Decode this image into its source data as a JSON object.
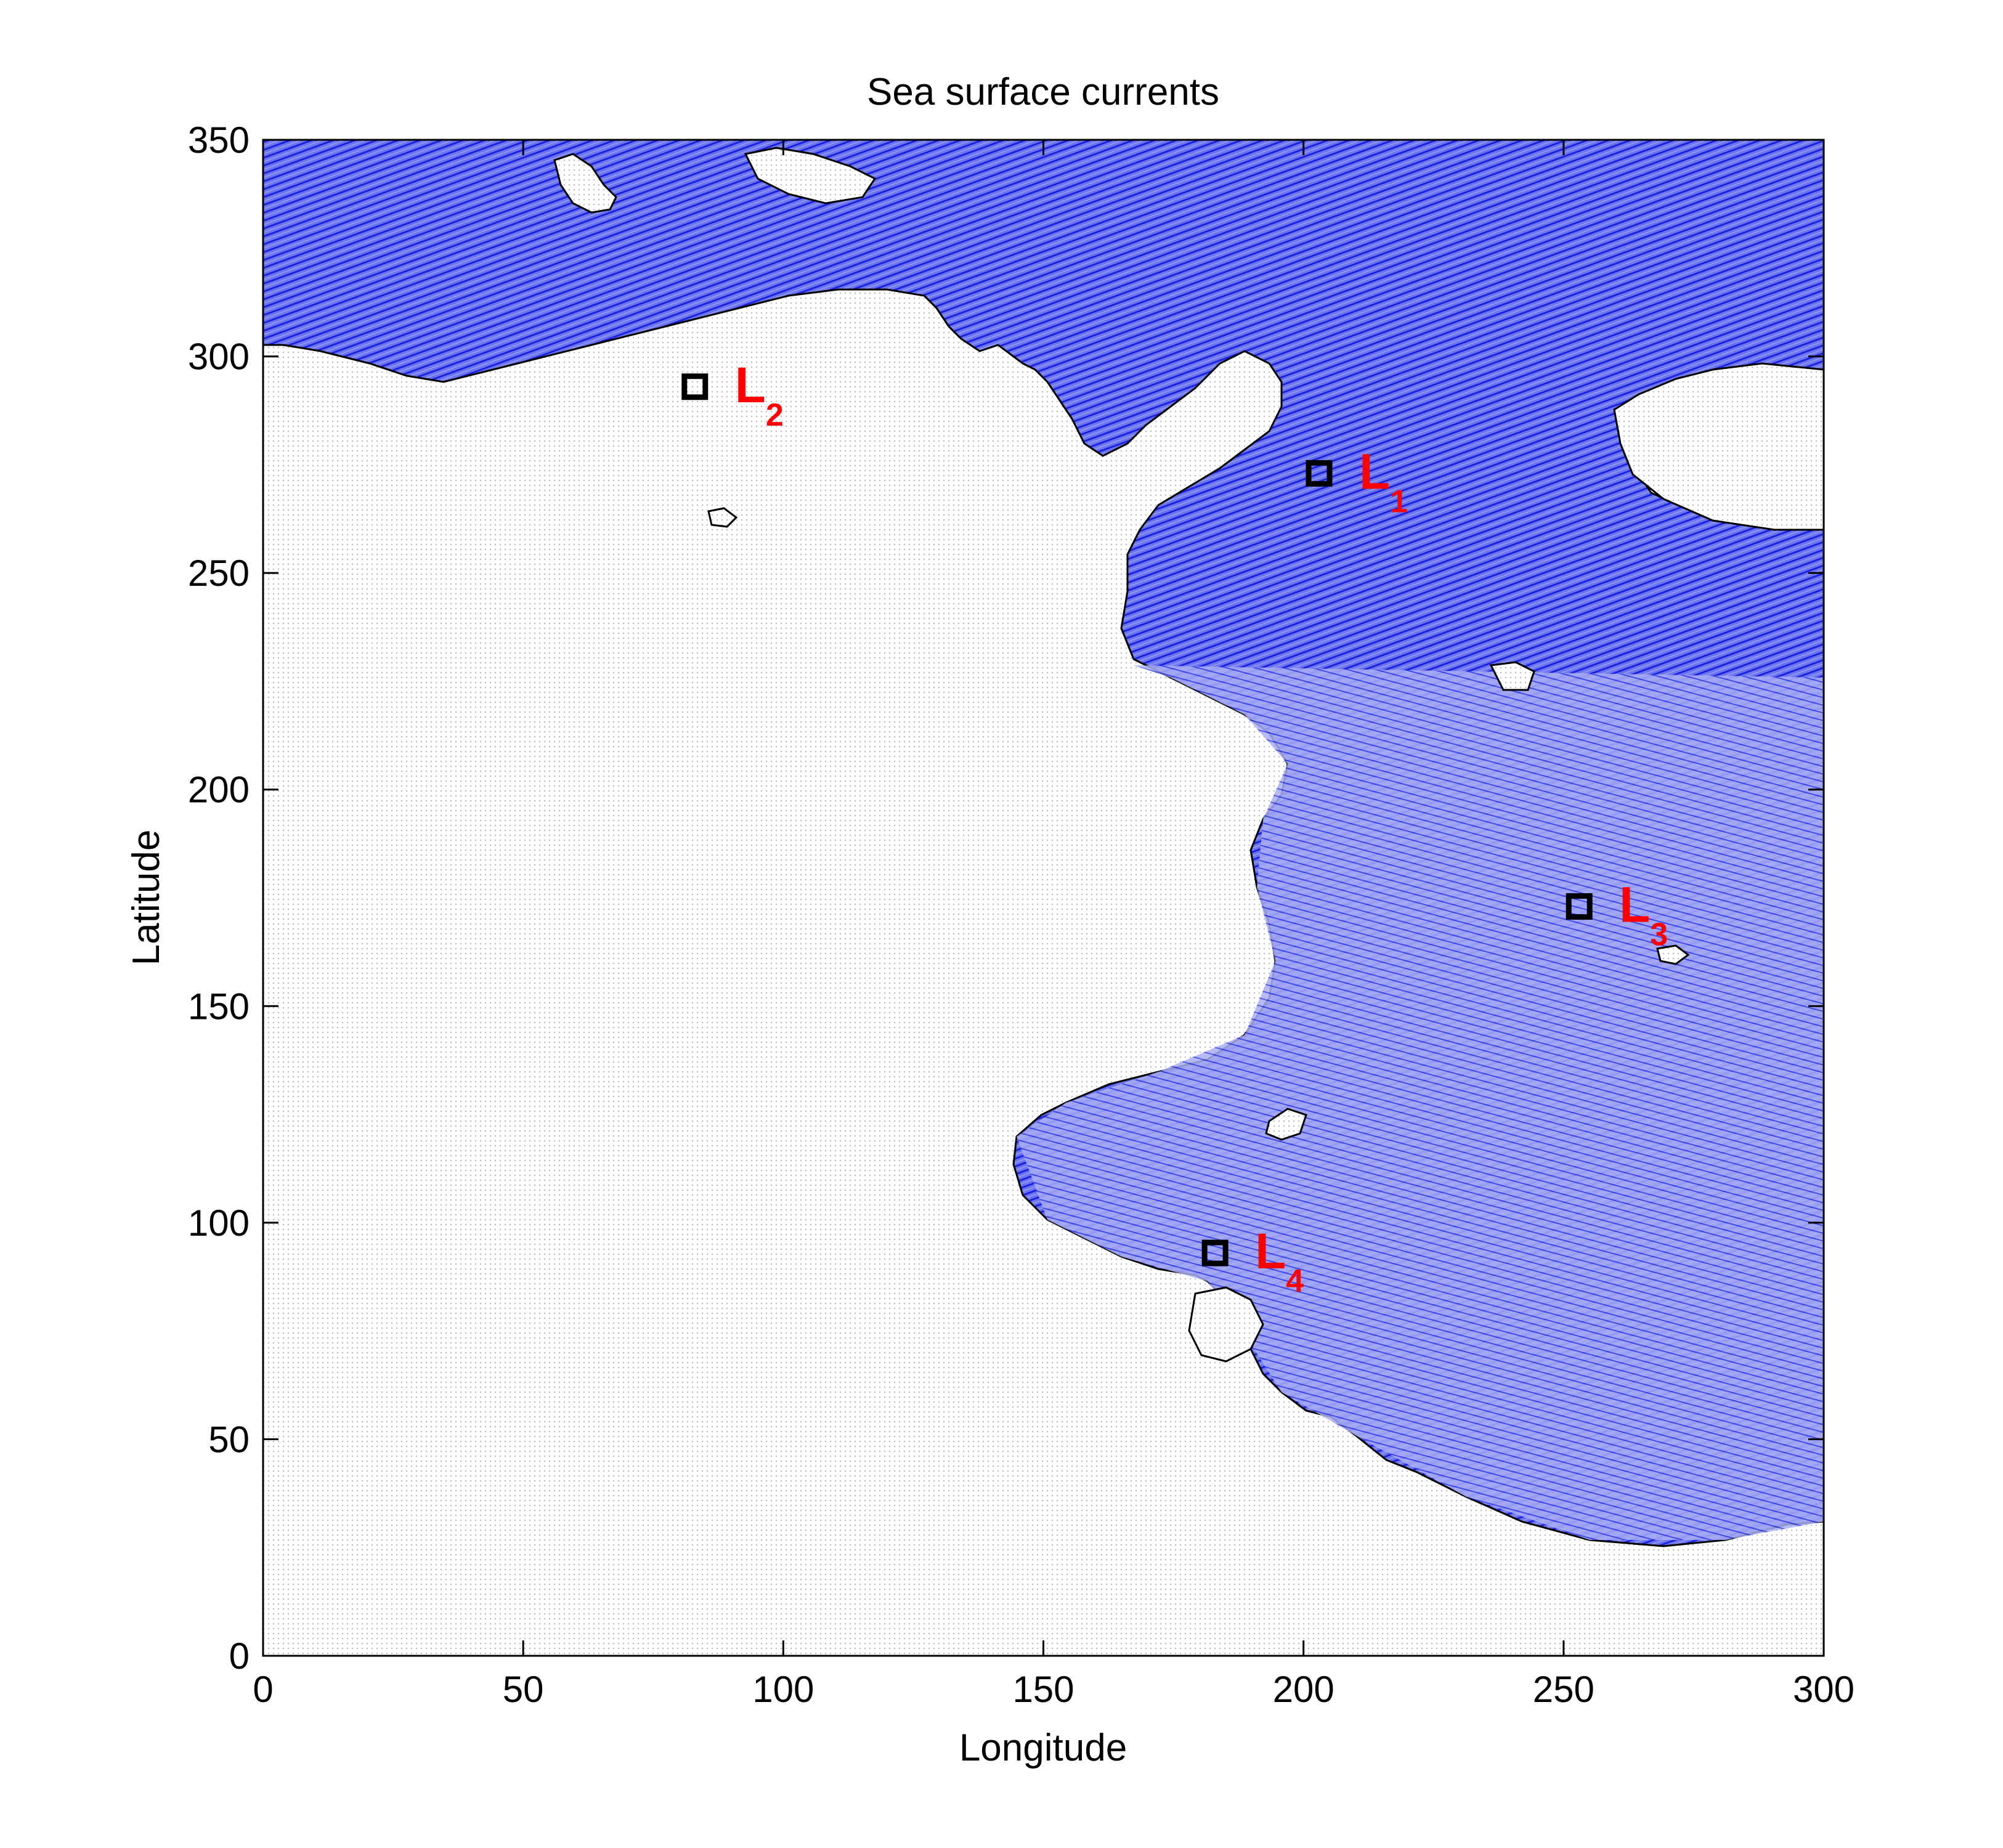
{
  "chart_data": {
    "type": "quiver",
    "title": "Sea surface currents",
    "xlabel": "Longitude",
    "ylabel": "Latitude",
    "xlim": [
      0,
      300
    ],
    "ylim": [
      0,
      350
    ],
    "xticks": [
      0,
      50,
      100,
      150,
      200,
      250,
      300
    ],
    "yticks": [
      0,
      50,
      100,
      150,
      200,
      250,
      300,
      350
    ],
    "grid": false,
    "colors": {
      "currents": "#0000ff",
      "land_outline": "#000000",
      "markers": "#000000",
      "labels": "#ff0000"
    },
    "points": [
      {
        "name": "L",
        "subscript": "1",
        "x": 203,
        "y": 273
      },
      {
        "name": "L",
        "subscript": "2",
        "x": 83,
        "y": 293
      },
      {
        "name": "L",
        "subscript": "3",
        "x": 253,
        "y": 173
      },
      {
        "name": "L",
        "subscript": "4",
        "x": 183,
        "y": 93
      }
    ]
  }
}
